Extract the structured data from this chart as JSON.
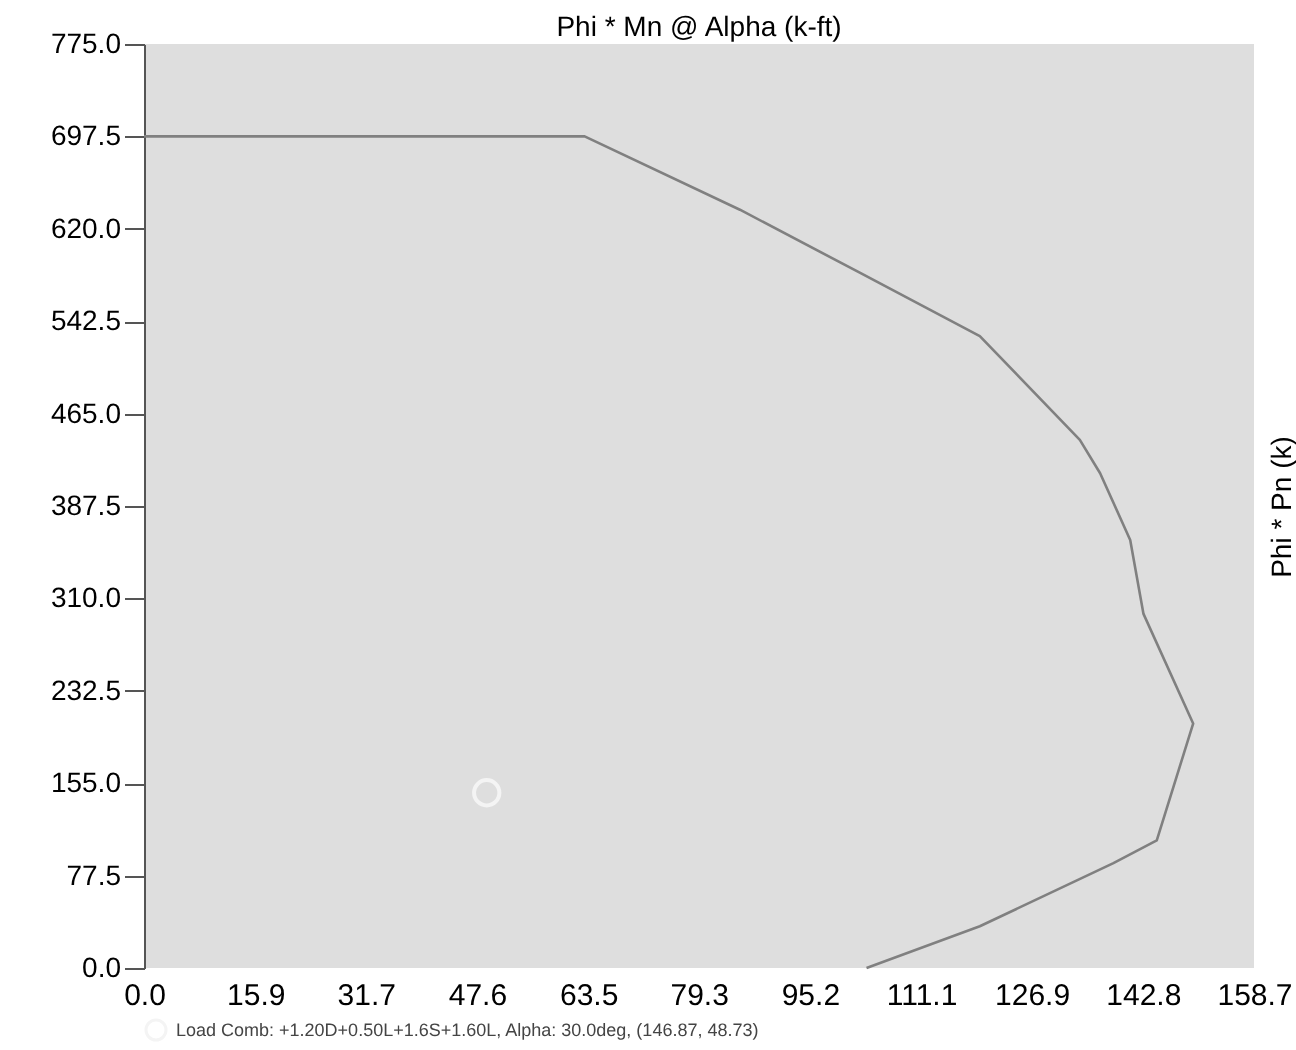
{
  "chart_data": {
    "type": "line",
    "title": "Phi * Mn @ Alpha  (k-ft)",
    "ylabel": "Phi * Pn  (k)",
    "xlim": [
      0,
      158.7
    ],
    "ylim": [
      0,
      775
    ],
    "xticks": [
      {
        "value": 0,
        "label": "0.0"
      },
      15.9,
      31.7,
      47.6,
      63.5,
      79.3,
      95.2,
      111.1,
      126.9,
      142.8,
      158.7
    ],
    "yticks": [
      {
        "value": 0,
        "label": "0.0"
      },
      77.5,
      {
        "value": 155,
        "label": "155.0"
      },
      232.5,
      {
        "value": 310,
        "label": "310.0"
      },
      387.5,
      {
        "value": 465,
        "label": "465.0"
      },
      542.5,
      {
        "value": 620,
        "label": "620.0"
      },
      697.5,
      {
        "value": 775,
        "label": "775.0"
      }
    ],
    "grid": false,
    "legend": "bottom",
    "series": [
      {
        "color": "#808080",
        "marker": "none",
        "x": [
          0,
          63,
          85.2,
          102.4,
          119.5,
          133.8,
          136.7,
          141.0,
          142.9,
          150.0,
          144.8,
          138.6,
          119.5,
          103.3
        ],
        "values": [
          697.5,
          697.5,
          636,
          583,
          530,
          443,
          415,
          359,
          297,
          205,
          107,
          88,
          35,
          0
        ]
      },
      {
        "type": "scatter",
        "name": "Load Comb: +1.20D+0.50L+1.6S+1.60L, Alpha: 30.0deg, (146.87, 48.73)",
        "color": "#f4f4f4",
        "marker": "circle",
        "x": [
          49
        ],
        "values": [
          147
        ]
      }
    ]
  }
}
